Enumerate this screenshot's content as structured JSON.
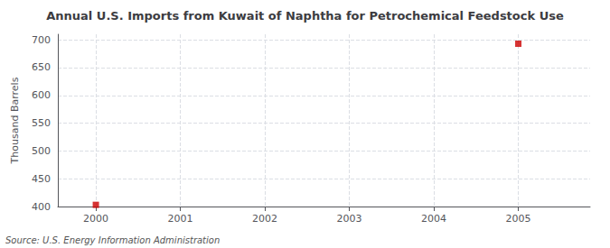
{
  "chart_data": {
    "type": "scatter",
    "title": "Annual U.S. Imports from Kuwait of Naphtha for Petrochemical Feedstock Use",
    "ylabel": "Thousand Barrels",
    "annotations": [
      "Source: U.S. Energy Information Administration"
    ],
    "x": [
      2000,
      2005
    ],
    "values": [
      403,
      693
    ],
    "color": "#cc0000",
    "marker": "square",
    "xlim": [
      1999.55,
      2005.85
    ],
    "ylim": [
      400,
      710
    ],
    "xticks": [
      2000,
      2001,
      2002,
      2003,
      2004,
      2005
    ],
    "yticks": [
      400,
      450,
      500,
      550,
      600,
      650,
      700
    ],
    "grid": true
  }
}
